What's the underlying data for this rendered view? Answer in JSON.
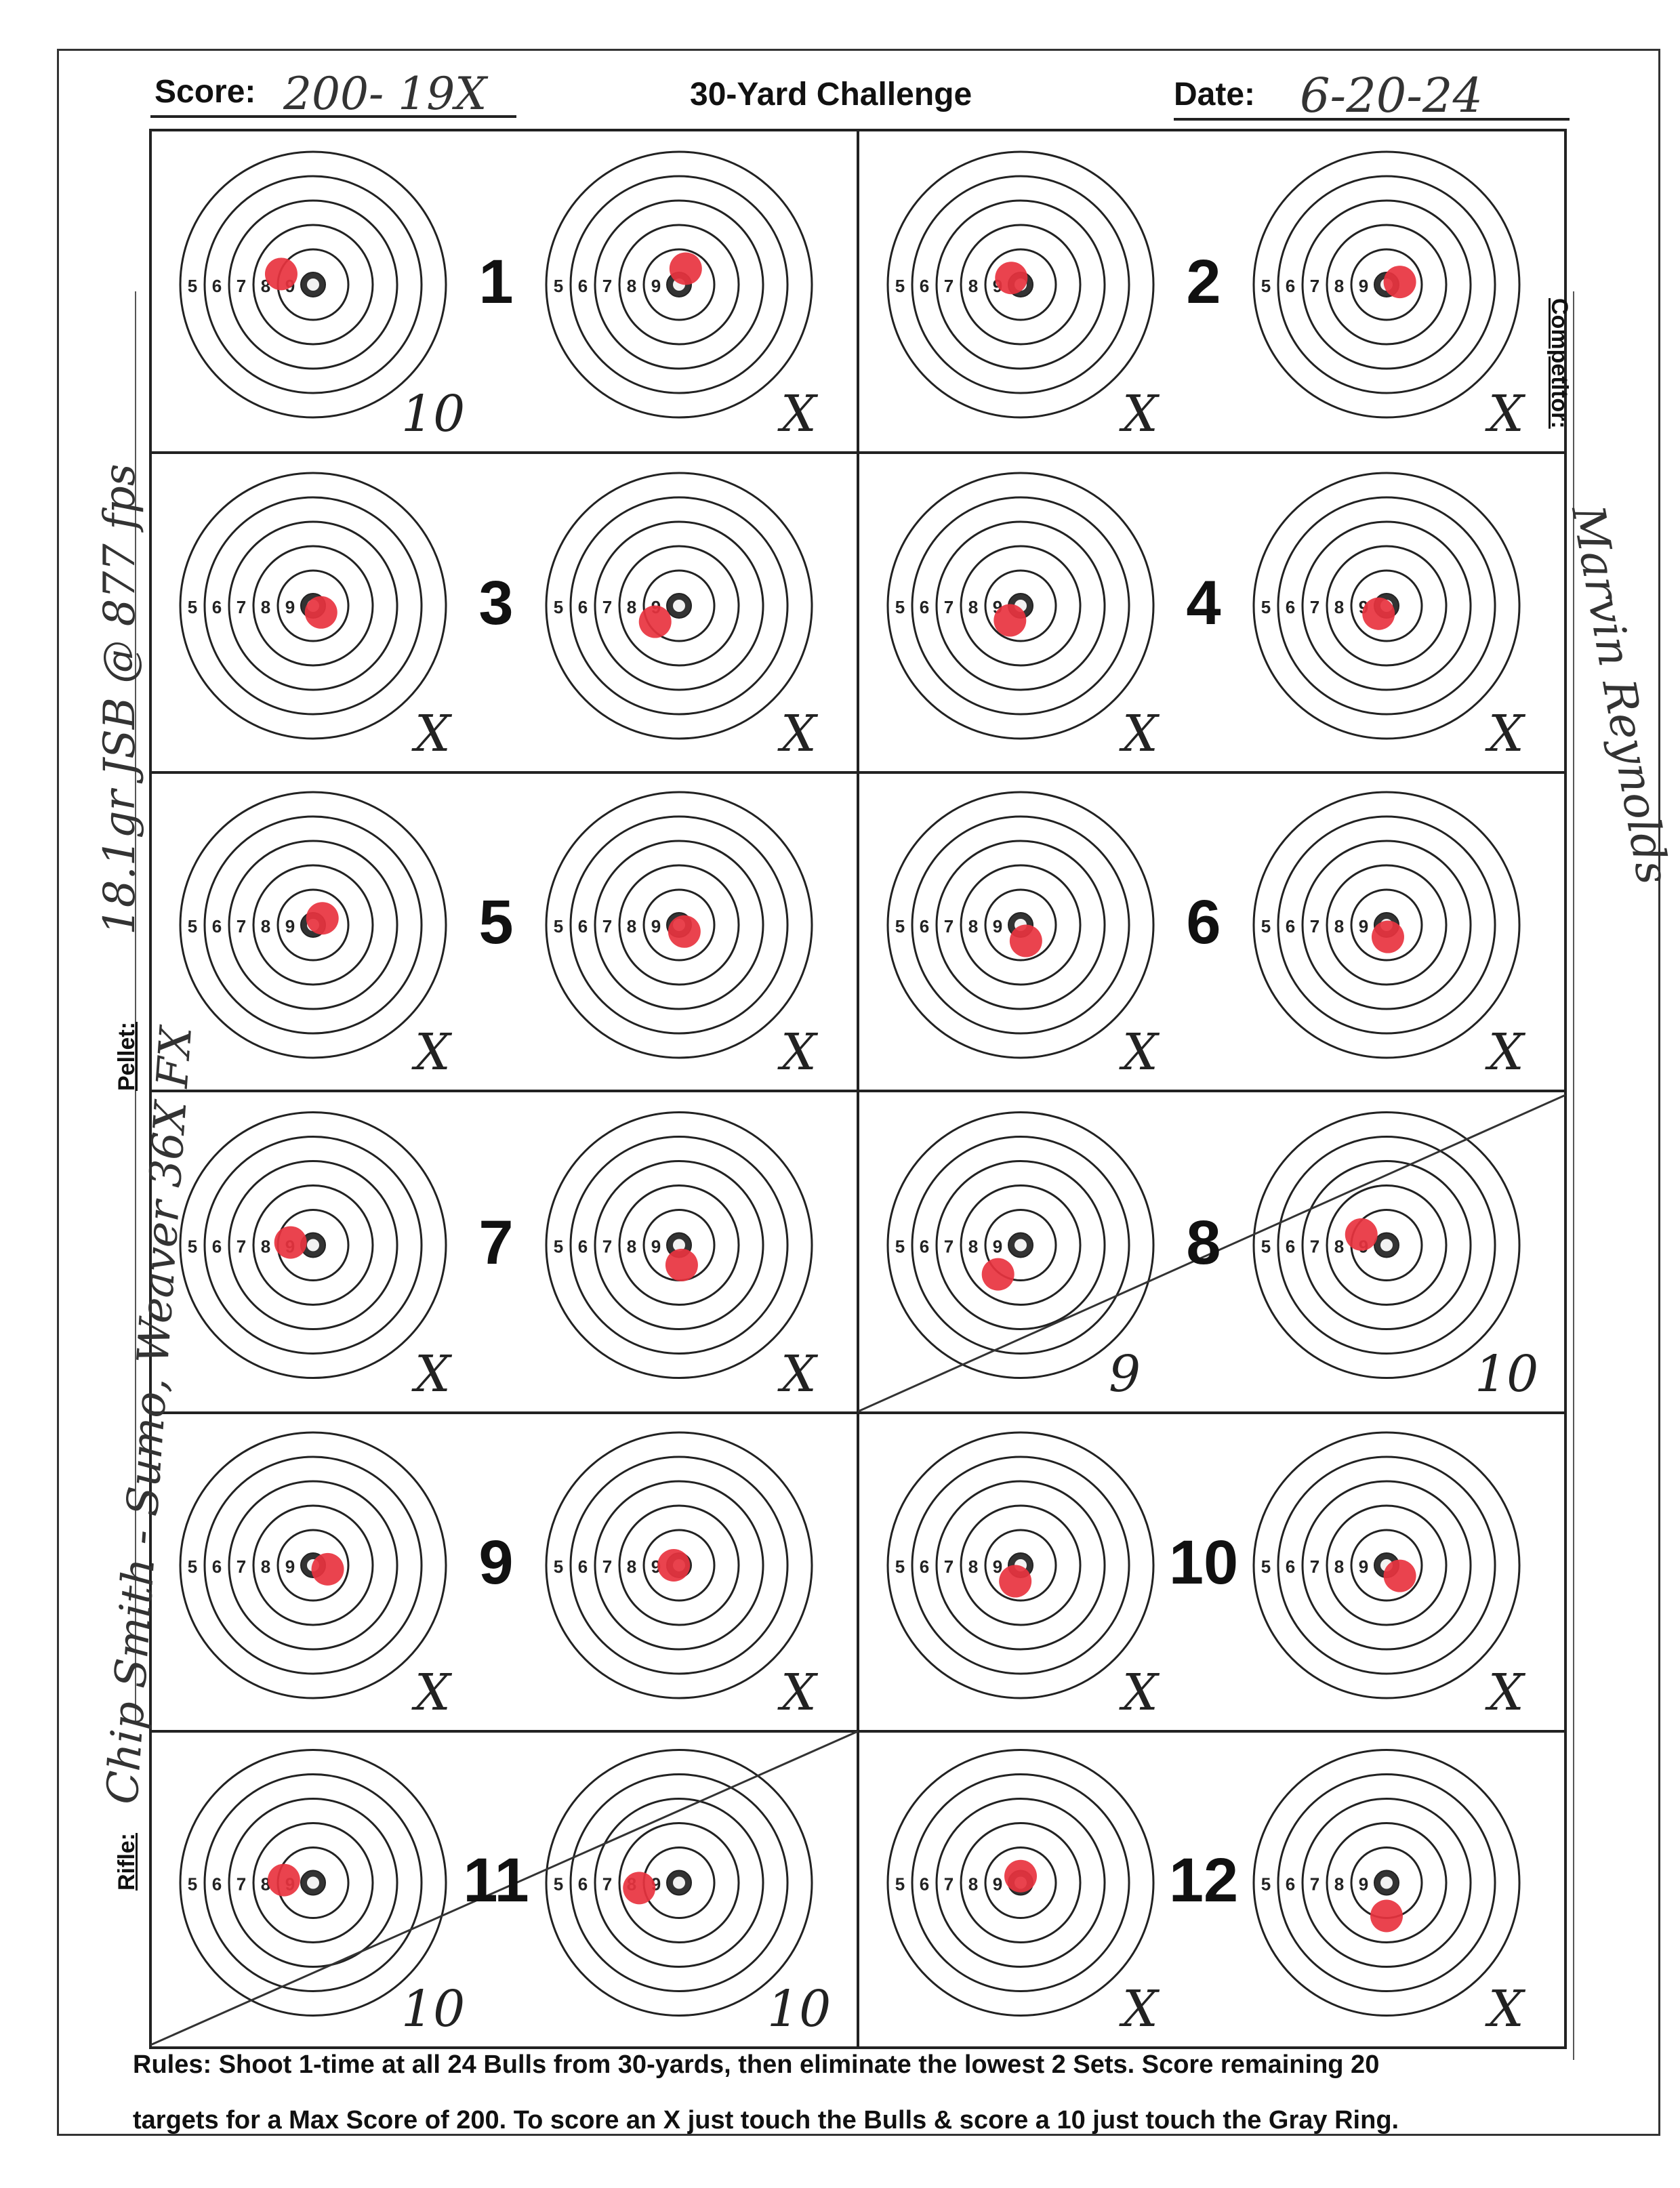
{
  "header": {
    "score_label": "Score:",
    "score_value": "200- 19X",
    "title": "30-Yard Challenge",
    "date_label": "Date:",
    "date_value": "6-20-24"
  },
  "side": {
    "competitor_label": "Competitor:",
    "competitor_value": "Marvin Reynolds",
    "pellet_label": "Pellet:",
    "pellet_value": "18.1gr JSB @ 877 fps",
    "rifle_label": "Rifle:",
    "rifle_value": "Chip Smith - Sumo, Weaver 36X FX"
  },
  "ring_labels": [
    "5",
    "6",
    "7",
    "8",
    "9"
  ],
  "sets": [
    {
      "number": "1",
      "left_mark": "10",
      "right_mark": "X",
      "left_shot": [
        -0.24,
        -0.08
      ],
      "right_shot": [
        0.05,
        -0.12
      ]
    },
    {
      "number": "2",
      "left_mark": "X",
      "right_mark": "X",
      "left_shot": [
        -0.07,
        -0.05
      ],
      "right_shot": [
        0.1,
        -0.02
      ]
    },
    {
      "number": "3",
      "left_mark": "X",
      "right_mark": "X",
      "left_shot": [
        0.06,
        0.05
      ],
      "right_shot": [
        -0.18,
        0.12
      ]
    },
    {
      "number": "4",
      "left_mark": "X",
      "right_mark": "X",
      "left_shot": [
        -0.08,
        0.11
      ],
      "right_shot": [
        -0.06,
        0.06
      ]
    },
    {
      "number": "5",
      "left_mark": "X",
      "right_mark": "X",
      "left_shot": [
        0.07,
        -0.05
      ],
      "right_shot": [
        0.04,
        0.05
      ]
    },
    {
      "number": "6",
      "left_mark": "X",
      "right_mark": "X",
      "left_shot": [
        0.04,
        0.12
      ],
      "right_shot": [
        0.01,
        0.09
      ]
    },
    {
      "number": "7",
      "left_mark": "X",
      "right_mark": "X",
      "left_shot": [
        -0.17,
        -0.02
      ],
      "right_shot": [
        0.02,
        0.15
      ]
    },
    {
      "number": "8",
      "left_mark": "9",
      "right_mark": "10",
      "left_shot": [
        -0.17,
        0.22
      ],
      "right_shot": [
        -0.19,
        -0.08
      ]
    },
    {
      "number": "9",
      "left_mark": "X",
      "right_mark": "X",
      "left_shot": [
        0.11,
        0.03
      ],
      "right_shot": [
        -0.04,
        0.0
      ]
    },
    {
      "number": "10",
      "left_mark": "X",
      "right_mark": "X",
      "left_shot": [
        -0.04,
        0.12
      ],
      "right_shot": [
        0.1,
        0.08
      ]
    },
    {
      "number": "11",
      "left_mark": "10",
      "right_mark": "10",
      "left_shot": [
        -0.22,
        -0.02
      ],
      "right_shot": [
        -0.3,
        0.04
      ]
    },
    {
      "number": "12",
      "left_mark": "X",
      "right_mark": "X",
      "left_shot": [
        0.0,
        -0.05
      ],
      "right_shot": [
        0.0,
        0.25
      ]
    }
  ],
  "rules": {
    "line1": "Rules: Shoot 1-time at all 24 Bulls from 30-yards, then eliminate the lowest 2 Sets. Score remaining 20",
    "line2": "targets for a Max Score of 200. To score an X just touch the Bulls & score a 10 just touch the Gray Ring."
  },
  "colors": {
    "impact": "#e8333f",
    "ink": "#222222",
    "bull_center": "#f2f2f2"
  }
}
